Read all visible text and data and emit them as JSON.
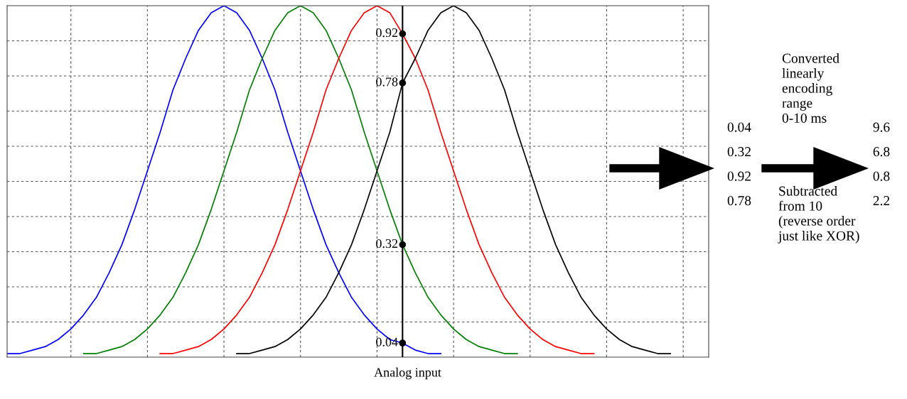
{
  "chart_data": {
    "type": "line",
    "ylim": [
      0,
      1
    ],
    "categories": [
      null,
      null,
      null,
      null,
      null,
      null,
      null,
      null,
      null,
      null,
      null,
      null,
      null,
      null,
      null,
      null,
      null,
      null,
      null,
      null,
      null,
      null,
      null,
      null,
      null,
      null,
      null,
      null,
      null,
      null,
      null,
      null,
      null,
      null,
      null,
      null,
      null,
      null,
      null,
      null,
      null,
      null,
      null,
      null,
      null,
      null,
      null,
      null,
      null,
      null,
      null,
      null,
      null,
      null,
      null,
      null
    ],
    "series": [
      {
        "color": "#0000ff",
        "values": [
          0.01,
          0.01,
          0.02,
          0.03,
          0.05,
          0.08,
          0.12,
          0.17,
          0.24,
          0.32,
          0.42,
          0.53,
          0.64,
          0.76,
          0.85,
          0.93,
          0.98,
          1,
          0.98,
          0.93,
          0.85,
          0.76,
          0.64,
          0.53,
          0.42,
          0.32,
          0.24,
          0.17,
          0.12,
          0.08,
          0.05,
          0.04,
          0.02,
          0.01,
          0.01,
          null,
          null,
          null,
          null,
          null,
          null,
          null,
          null,
          null,
          null,
          null,
          null,
          null,
          null,
          null,
          null,
          null,
          null,
          null,
          null,
          null
        ],
        "value_labels": [
          null,
          null,
          null,
          null,
          null,
          null,
          null,
          null,
          null,
          null,
          null,
          null,
          null,
          null,
          null,
          null,
          null,
          null,
          null,
          null,
          null,
          null,
          null,
          null,
          null,
          null,
          null,
          null,
          null,
          null,
          null,
          "0.04",
          null,
          null,
          null,
          null,
          null,
          null,
          null,
          null,
          null,
          null,
          null,
          null,
          null,
          null,
          null,
          null,
          null,
          null,
          null,
          null,
          null,
          null,
          null,
          null
        ]
      },
      {
        "color": "#008000",
        "values": [
          null,
          null,
          null,
          null,
          null,
          null,
          0.01,
          0.01,
          0.02,
          0.03,
          0.05,
          0.08,
          0.12,
          0.17,
          0.24,
          0.32,
          0.42,
          0.53,
          0.64,
          0.76,
          0.85,
          0.93,
          0.98,
          1,
          0.98,
          0.93,
          0.85,
          0.76,
          0.64,
          0.53,
          0.42,
          0.32,
          0.24,
          0.17,
          0.12,
          0.08,
          0.05,
          0.03,
          0.02,
          0.01,
          0.01,
          null,
          null,
          null,
          null,
          null,
          null,
          null,
          null,
          null,
          null,
          null,
          null,
          null,
          null,
          null
        ],
        "value_labels": [
          null,
          null,
          null,
          null,
          null,
          null,
          null,
          null,
          null,
          null,
          null,
          null,
          null,
          null,
          null,
          null,
          null,
          null,
          null,
          null,
          null,
          null,
          null,
          null,
          null,
          null,
          null,
          null,
          null,
          null,
          null,
          "0.32",
          null,
          null,
          null,
          null,
          null,
          null,
          null,
          null,
          null,
          null,
          null,
          null,
          null,
          null,
          null,
          null,
          null,
          null,
          null,
          null,
          null,
          null,
          null,
          null
        ]
      },
      {
        "color": "#ff0000",
        "values": [
          null,
          null,
          null,
          null,
          null,
          null,
          null,
          null,
          null,
          null,
          null,
          null,
          0.01,
          0.01,
          0.02,
          0.03,
          0.05,
          0.08,
          0.12,
          0.17,
          0.24,
          0.32,
          0.42,
          0.53,
          0.64,
          0.76,
          0.85,
          0.93,
          0.98,
          1,
          0.98,
          0.92,
          0.85,
          0.76,
          0.64,
          0.53,
          0.42,
          0.32,
          0.24,
          0.17,
          0.12,
          0.08,
          0.05,
          0.03,
          0.02,
          0.01,
          0.01,
          null,
          null,
          null,
          null,
          null,
          null,
          null,
          null,
          null
        ],
        "value_labels": [
          null,
          null,
          null,
          null,
          null,
          null,
          null,
          null,
          null,
          null,
          null,
          null,
          null,
          null,
          null,
          null,
          null,
          null,
          null,
          null,
          null,
          null,
          null,
          null,
          null,
          null,
          null,
          null,
          null,
          null,
          null,
          "0.92",
          null,
          null,
          null,
          null,
          null,
          null,
          null,
          null,
          null,
          null,
          null,
          null,
          null,
          null,
          null,
          null,
          null,
          null,
          null,
          null,
          null,
          null,
          null,
          null
        ]
      },
      {
        "color": "#000000",
        "values": [
          null,
          null,
          null,
          null,
          null,
          null,
          null,
          null,
          null,
          null,
          null,
          null,
          null,
          null,
          null,
          null,
          null,
          null,
          0.01,
          0.01,
          0.02,
          0.03,
          0.05,
          0.08,
          0.12,
          0.17,
          0.24,
          0.32,
          0.42,
          0.53,
          0.64,
          0.78,
          0.85,
          0.93,
          0.98,
          1,
          0.98,
          0.93,
          0.85,
          0.76,
          0.64,
          0.53,
          0.42,
          0.32,
          0.24,
          0.17,
          0.12,
          0.08,
          0.05,
          0.03,
          0.02,
          0.01,
          0.01,
          null,
          null,
          null
        ],
        "value_labels": [
          null,
          null,
          null,
          null,
          null,
          null,
          null,
          null,
          null,
          null,
          null,
          null,
          null,
          null,
          null,
          null,
          null,
          null,
          null,
          null,
          null,
          null,
          null,
          null,
          null,
          null,
          null,
          null,
          null,
          null,
          null,
          "0.78",
          null,
          null,
          null,
          null,
          null,
          null,
          null,
          null,
          null,
          null,
          null,
          null,
          null,
          null,
          null,
          null,
          null,
          null,
          null,
          null,
          null,
          null,
          null,
          null
        ]
      }
    ],
    "grid": true,
    "line_style": "solid",
    "annotations": [
      "Analog input",
      "0.04\n0.32\n0.92\n0.78",
      "Converted\nlinearly\nencoding\nrange\n0-10 ms",
      "9.6\n6.8\n0.8\n2.2",
      "Subtracted\nfrom 10\n(reverse order\njust like XOR)"
    ]
  }
}
